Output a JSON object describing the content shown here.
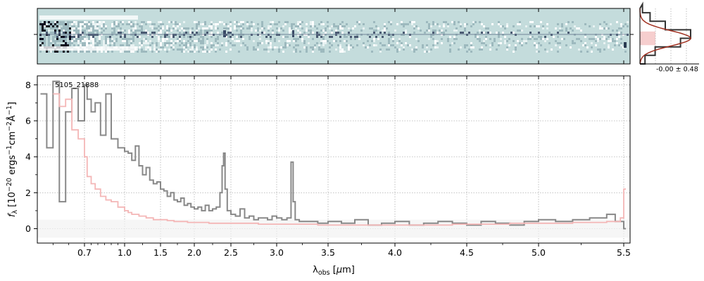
{
  "chart_data": [
    {
      "type": "heatmap",
      "description": "2D spectrum (counts vs wavelength and spatial position)",
      "xticks": [
        0.7,
        1.0,
        1.5,
        2.0,
        2.5,
        3.0,
        3.5,
        4.0,
        4.5,
        5.0,
        5.5
      ],
      "colormap_low": "#c4dcdc",
      "colormap_high": "#0c0c1e"
    },
    {
      "type": "line",
      "title": "",
      "label": "5105_21888",
      "xlabel": "λ_obs [μm]",
      "ylabel": "f_λ [10^-20 ergs^-1cm^-2Å^-1]",
      "xscale": "custom (compressed blue end)",
      "xlim": [
        0.55,
        5.52
      ],
      "ylim": [
        -0.8,
        8.5
      ],
      "xticks": [
        0.7,
        1.0,
        1.5,
        2.0,
        2.5,
        3.0,
        3.5,
        4.0,
        4.5,
        5.0,
        5.5
      ],
      "xtick_labels": [
        "0.7",
        "1.0",
        "1.5",
        "2.0",
        "2.5",
        "3.0",
        "3.5",
        "4.0",
        "4.5",
        "5.0",
        "5.5"
      ],
      "yticks": [
        0,
        2,
        4,
        6,
        8
      ],
      "grid": true,
      "series": [
        {
          "color": "#888888",
          "style": "steps",
          "x": [
            0.56,
            0.58,
            0.6,
            0.62,
            0.64,
            0.66,
            0.68,
            0.7,
            0.72,
            0.75,
            0.78,
            0.82,
            0.86,
            0.9,
            0.95,
            1.0,
            1.05,
            1.1,
            1.15,
            1.2,
            1.25,
            1.3,
            1.35,
            1.4,
            1.45,
            1.5,
            1.55,
            1.6,
            1.65,
            1.7,
            1.75,
            1.8,
            1.85,
            1.9,
            1.95,
            2.0,
            2.05,
            2.1,
            2.15,
            2.2,
            2.25,
            2.3,
            2.35,
            2.38,
            2.4,
            2.42,
            2.45,
            2.5,
            2.55,
            2.6,
            2.65,
            2.7,
            2.75,
            2.8,
            2.85,
            2.9,
            2.95,
            3.0,
            3.05,
            3.1,
            3.14,
            3.16,
            3.18,
            3.22,
            3.3,
            3.4,
            3.5,
            3.6,
            3.7,
            3.8,
            3.9,
            4.0,
            4.1,
            4.2,
            4.3,
            4.4,
            4.5,
            4.6,
            4.7,
            4.8,
            4.9,
            5.0,
            5.1,
            5.2,
            5.3,
            5.4,
            5.45,
            5.5
          ],
          "y": [
            7.5,
            4.5,
            8.2,
            1.5,
            6.5,
            7.8,
            6.0,
            8.0,
            7.2,
            6.5,
            7.0,
            5.2,
            7.5,
            5.0,
            4.5,
            4.3,
            4.2,
            3.8,
            4.6,
            3.5,
            3.0,
            3.4,
            2.7,
            2.5,
            2.6,
            2.2,
            2.1,
            1.8,
            2.0,
            1.6,
            1.5,
            1.7,
            1.3,
            1.4,
            1.2,
            1.1,
            1.2,
            1.0,
            1.3,
            1.0,
            1.1,
            1.2,
            2.0,
            3.5,
            4.2,
            2.2,
            1.0,
            0.8,
            0.7,
            1.1,
            0.6,
            0.7,
            0.5,
            0.6,
            0.6,
            0.5,
            0.7,
            0.6,
            0.5,
            0.6,
            3.7,
            1.5,
            0.5,
            0.4,
            0.4,
            0.3,
            0.4,
            0.3,
            0.5,
            0.2,
            0.3,
            0.4,
            0.2,
            0.3,
            0.4,
            0.3,
            0.2,
            0.4,
            0.3,
            0.2,
            0.4,
            0.5,
            0.4,
            0.5,
            0.6,
            0.8,
            0.4,
            0.0
          ]
        },
        {
          "color": "#f4b6b6",
          "style": "steps",
          "x": [
            0.6,
            0.62,
            0.64,
            0.66,
            0.68,
            0.7,
            0.72,
            0.75,
            0.78,
            0.82,
            0.86,
            0.9,
            0.95,
            1.0,
            1.05,
            1.1,
            1.2,
            1.3,
            1.4,
            1.5,
            1.6,
            1.7,
            1.8,
            1.9,
            2.0,
            2.2,
            2.4,
            2.6,
            2.8,
            3.0,
            3.2,
            3.4,
            3.6,
            3.8,
            4.0,
            4.2,
            4.4,
            4.6,
            4.8,
            5.0,
            5.2,
            5.4,
            5.48,
            5.5
          ],
          "y": [
            7.5,
            6.8,
            7.2,
            5.5,
            5.0,
            4.0,
            2.9,
            2.5,
            2.2,
            1.8,
            1.6,
            1.5,
            1.2,
            1.0,
            0.9,
            0.8,
            0.7,
            0.6,
            0.5,
            0.5,
            0.45,
            0.4,
            0.4,
            0.35,
            0.35,
            0.3,
            0.3,
            0.3,
            0.25,
            0.25,
            0.25,
            0.2,
            0.2,
            0.2,
            0.2,
            0.2,
            0.25,
            0.25,
            0.3,
            0.3,
            0.35,
            0.4,
            0.6,
            2.2
          ]
        }
      ]
    },
    {
      "type": "histogram",
      "label": "-0.00 ± 0.48",
      "bins_y": [
        -3,
        -2,
        -1,
        0,
        1,
        2,
        3
      ],
      "counts": [
        0.1,
        0.3,
        0.8,
        1.0,
        0.5,
        0.2,
        0.05
      ],
      "colors": {
        "step": "#333333",
        "fill": "#f4c2c2",
        "line": "#a03020"
      }
    }
  ]
}
